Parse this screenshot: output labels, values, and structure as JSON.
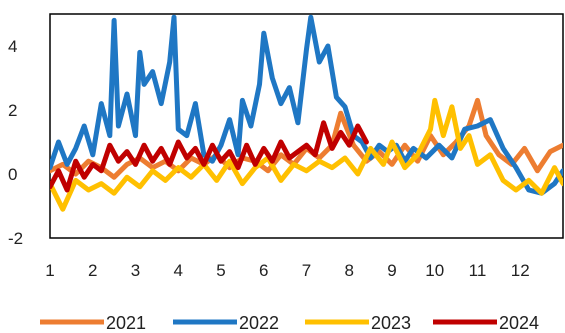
{
  "chart_data": {
    "type": "line",
    "title": "",
    "xlabel": "",
    "ylabel": "",
    "xlim": [
      1,
      13
    ],
    "ylim": [
      -2,
      5
    ],
    "x_ticks": [
      1,
      2,
      3,
      4,
      5,
      6,
      7,
      8,
      9,
      10,
      11,
      12
    ],
    "y_ticks": [
      -2,
      0,
      2,
      4
    ],
    "grid": false,
    "legend_position": "bottom",
    "series": [
      {
        "name": "2021",
        "color": "#ED7D31",
        "x": [
          1.0,
          1.3,
          1.6,
          1.9,
          2.2,
          2.5,
          2.8,
          3.1,
          3.4,
          3.7,
          4.0,
          4.3,
          4.6,
          4.9,
          5.2,
          5.5,
          5.8,
          6.1,
          6.4,
          6.7,
          7.0,
          7.3,
          7.6,
          7.8,
          8.1,
          8.4,
          8.7,
          9.0,
          9.3,
          9.6,
          9.9,
          10.2,
          10.5,
          10.8,
          11.0,
          11.2,
          11.5,
          11.8,
          12.1,
          12.4,
          12.7,
          13.0
        ],
        "values": [
          0.1,
          0.3,
          0.0,
          0.4,
          0.2,
          -0.1,
          0.3,
          0.5,
          0.2,
          0.4,
          0.1,
          0.5,
          0.3,
          0.6,
          0.2,
          0.5,
          0.4,
          0.1,
          0.6,
          0.3,
          0.8,
          0.5,
          0.9,
          1.9,
          0.9,
          0.4,
          0.7,
          0.3,
          0.9,
          0.4,
          1.2,
          0.6,
          1.0,
          1.5,
          2.3,
          1.2,
          0.6,
          0.3,
          0.8,
          0.1,
          0.7,
          0.9
        ]
      },
      {
        "name": "2022",
        "color": "#1F77C4",
        "x": [
          1.0,
          1.2,
          1.4,
          1.6,
          1.8,
          2.0,
          2.2,
          2.4,
          2.5,
          2.6,
          2.8,
          3.0,
          3.1,
          3.2,
          3.4,
          3.6,
          3.8,
          3.9,
          4.0,
          4.2,
          4.4,
          4.6,
          4.8,
          5.0,
          5.2,
          5.4,
          5.5,
          5.7,
          5.9,
          6.0,
          6.2,
          6.4,
          6.6,
          6.8,
          7.0,
          7.1,
          7.3,
          7.5,
          7.7,
          7.9,
          8.1,
          8.3,
          8.5,
          8.7,
          8.9,
          9.1,
          9.3,
          9.5,
          9.8,
          10.1,
          10.4,
          10.7,
          11.0,
          11.3,
          11.6,
          11.9,
          12.2,
          12.5,
          12.8,
          13.0
        ],
        "values": [
          0.2,
          1.0,
          0.3,
          0.8,
          1.5,
          0.6,
          2.2,
          1.2,
          4.8,
          1.5,
          2.5,
          1.2,
          3.8,
          2.8,
          3.2,
          2.2,
          3.5,
          4.9,
          1.4,
          1.2,
          2.2,
          0.6,
          0.4,
          0.9,
          1.7,
          0.6,
          2.3,
          1.5,
          2.8,
          4.4,
          3.0,
          2.2,
          2.7,
          1.6,
          3.9,
          4.9,
          3.5,
          4.0,
          2.4,
          2.1,
          1.2,
          1.0,
          0.5,
          0.9,
          0.7,
          0.9,
          0.4,
          0.8,
          0.5,
          0.9,
          0.5,
          1.4,
          1.5,
          1.7,
          0.8,
          0.2,
          -0.5,
          -0.6,
          -0.3,
          0.1
        ]
      },
      {
        "name": "2023",
        "color": "#FFC000",
        "x": [
          1.0,
          1.3,
          1.6,
          1.9,
          2.2,
          2.5,
          2.8,
          3.1,
          3.4,
          3.7,
          4.0,
          4.3,
          4.6,
          4.9,
          5.2,
          5.5,
          5.8,
          6.1,
          6.4,
          6.7,
          7.0,
          7.3,
          7.6,
          7.9,
          8.2,
          8.5,
          8.8,
          9.0,
          9.3,
          9.6,
          9.9,
          10.0,
          10.2,
          10.4,
          10.6,
          10.8,
          11.0,
          11.3,
          11.6,
          11.9,
          12.2,
          12.5,
          12.8,
          13.0
        ],
        "values": [
          -0.3,
          -1.1,
          -0.2,
          -0.5,
          -0.3,
          -0.6,
          -0.1,
          -0.4,
          0.1,
          -0.2,
          0.2,
          -0.1,
          0.3,
          -0.2,
          0.4,
          -0.3,
          0.2,
          0.5,
          -0.2,
          0.3,
          0.1,
          0.4,
          0.2,
          0.5,
          0.0,
          0.8,
          0.3,
          1.0,
          0.2,
          0.6,
          1.4,
          2.3,
          1.2,
          2.1,
          0.8,
          1.2,
          0.3,
          0.6,
          -0.2,
          -0.5,
          -0.2,
          -0.6,
          0.2,
          -0.3
        ]
      },
      {
        "name": "2024",
        "color": "#C00000",
        "x": [
          1.0,
          1.2,
          1.4,
          1.6,
          1.8,
          2.0,
          2.2,
          2.4,
          2.6,
          2.8,
          3.0,
          3.2,
          3.4,
          3.6,
          3.8,
          4.0,
          4.2,
          4.4,
          4.6,
          4.8,
          5.0,
          5.2,
          5.4,
          5.6,
          5.8,
          6.0,
          6.2,
          6.4,
          6.6,
          6.8,
          7.0,
          7.2,
          7.4,
          7.6,
          7.8,
          8.0,
          8.2,
          8.4
        ],
        "values": [
          -0.4,
          0.1,
          -0.5,
          0.4,
          -0.1,
          0.3,
          0.1,
          0.9,
          0.4,
          0.7,
          0.3,
          0.9,
          0.4,
          0.8,
          0.3,
          1.0,
          0.5,
          0.8,
          0.3,
          0.9,
          0.4,
          0.7,
          0.2,
          0.9,
          0.3,
          0.8,
          0.4,
          1.0,
          0.5,
          0.7,
          0.9,
          0.6,
          1.6,
          0.8,
          1.3,
          0.9,
          1.5,
          1.0
        ]
      }
    ]
  }
}
